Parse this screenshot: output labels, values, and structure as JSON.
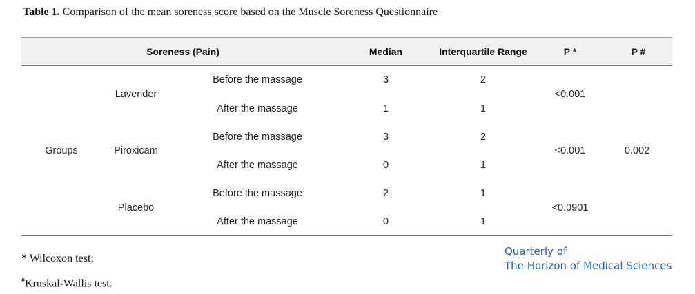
{
  "caption": {
    "label": "Table 1.",
    "text": "Comparison of the mean soreness score based on the Muscle Soreness Questionnaire"
  },
  "table": {
    "headers": {
      "soreness": "Soreness (Pain)",
      "median": "Median",
      "iqr": "Interquartile Range",
      "p1": "P *",
      "p2": "P #"
    },
    "group_label": "Groups",
    "overall_p": "0.002",
    "groups": [
      {
        "name": "Lavender",
        "p": "<0.001",
        "rows": [
          {
            "phase": "Before the massage",
            "median": "3",
            "iqr": "2"
          },
          {
            "phase": "After the massage",
            "median": "1",
            "iqr": "1"
          }
        ]
      },
      {
        "name": "Piroxicam",
        "p": "<0.001",
        "rows": [
          {
            "phase": "Before the massage",
            "median": "3",
            "iqr": "2"
          },
          {
            "phase": "After the massage",
            "median": "0",
            "iqr": "1"
          }
        ]
      },
      {
        "name": "Placebo",
        "p": "<0.0901",
        "rows": [
          {
            "phase": "Before the massage",
            "median": "2",
            "iqr": "1"
          },
          {
            "phase": "After the massage",
            "median": "0",
            "iqr": "1"
          }
        ]
      }
    ]
  },
  "footnotes": {
    "wilcoxon_mark": "*",
    "wilcoxon": "Wilcoxon test;",
    "kruskal_mark": "#",
    "kruskal": "Kruskal-Wallis test."
  },
  "brand": {
    "line1": "Quarterly of",
    "line2_pre": "The ",
    "line2_h": "H",
    "line2_mid1": "orizon of ",
    "line2_m": "M",
    "line2_mid2": "edical ",
    "line2_s": "S",
    "line2_end": "ciences",
    "color_primary": "#1f5fae",
    "color_accent": "#2a8fe0"
  }
}
